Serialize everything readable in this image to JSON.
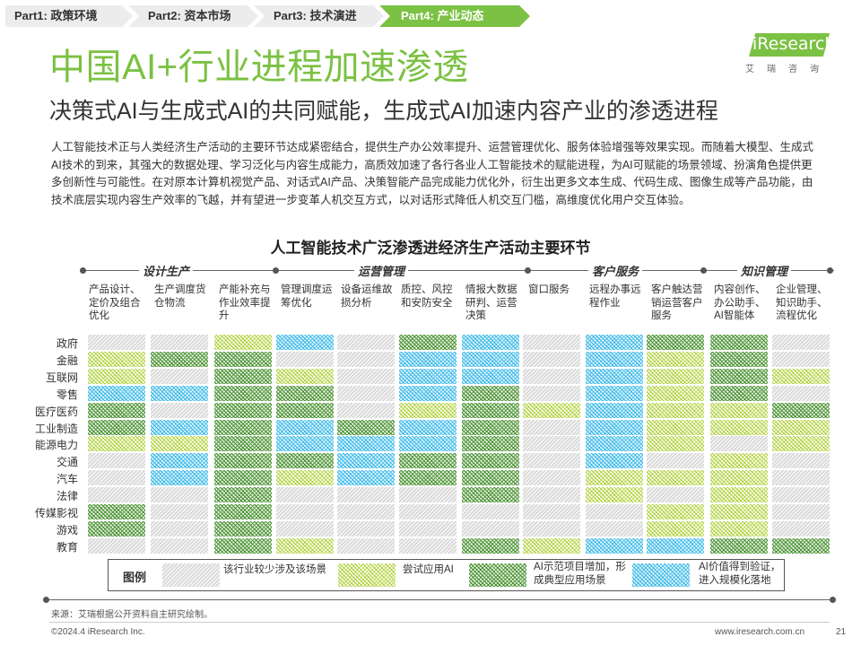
{
  "nav": {
    "tabs": [
      {
        "label": "Part1: 政策环境",
        "active": false
      },
      {
        "label": "Part2: 资本市场",
        "active": false
      },
      {
        "label": "Part3: 技术演进",
        "active": false
      },
      {
        "label": "Part4: 产业动态",
        "active": true
      }
    ]
  },
  "logo": {
    "brand": "iResearch",
    "cn": "艾瑞咨询"
  },
  "title": "中国AI+行业进程加速渗透",
  "subtitle": "决策式AI与生成式AI的共同赋能，生成式AI加速内容产业的渗透进程",
  "body_text": "人工智能技术正与人类经济生产活动的主要环节达成紧密结合，提供生产办公效率提升、运营管理优化、服务体验增强等效果实现。而随着大模型、生成式AI技术的到来，其强大的数据处理、学习泛化与内容生成能力，高质效加速了各行各业人工智能技术的赋能进程，为AI可赋能的场景领域、扮演角色提供更多创新性与可能性。在对原本计算机视觉产品、对话式AI产品、决策智能产品完成能力优化外，衍生出更多文本生成、代码生成、图像生成等产品功能，由技术底层实现内容生产效率的飞越，并有望进一步变革人机交互方式，以对话形式降低人机交互门槛，高维度优化用户交互体验。",
  "table": {
    "title": "人工智能技术广泛渗透进经济生产活动主要环节",
    "groups": [
      "设计生产",
      "运营管理",
      "客户服务",
      "知识管理"
    ],
    "columns": [
      "产品设计、定价及组合优化",
      "生产调度货仓物流",
      "产能补充与作业效率提升",
      "管理调度运筹优化",
      "设备运维故损分析",
      "质控、风控和安防安全",
      "情报大数据研判、运营决策",
      "窗口服务",
      "远程办事远程作业",
      "客户触达营销运营客户服务",
      "内容创作、办公助手、AI智能体",
      "企业管理、知识助手、流程优化"
    ],
    "rows": [
      "政府",
      "金融",
      "互联网",
      "零售",
      "医疗医药",
      "工业制造",
      "能源电力",
      "交通",
      "汽车",
      "法律",
      "传媒影视",
      "游戏",
      "教育"
    ],
    "matrix": [
      [
        0,
        0,
        1,
        3,
        0,
        2,
        3,
        0,
        3,
        2,
        2,
        0
      ],
      [
        1,
        2,
        2,
        0,
        0,
        3,
        3,
        0,
        3,
        1,
        2,
        0
      ],
      [
        1,
        0,
        2,
        1,
        0,
        3,
        3,
        0,
        3,
        1,
        2,
        1
      ],
      [
        3,
        3,
        2,
        2,
        0,
        3,
        2,
        0,
        3,
        1,
        2,
        0
      ],
      [
        2,
        0,
        2,
        2,
        0,
        1,
        2,
        1,
        3,
        1,
        1,
        2
      ],
      [
        2,
        3,
        2,
        3,
        2,
        3,
        2,
        0,
        3,
        1,
        1,
        1
      ],
      [
        1,
        1,
        2,
        3,
        3,
        3,
        2,
        0,
        3,
        1,
        0,
        1
      ],
      [
        0,
        3,
        2,
        2,
        3,
        2,
        2,
        0,
        3,
        0,
        1,
        0
      ],
      [
        0,
        3,
        2,
        1,
        3,
        2,
        2,
        0,
        1,
        1,
        1,
        0
      ],
      [
        0,
        0,
        2,
        0,
        0,
        0,
        2,
        0,
        1,
        0,
        1,
        0
      ],
      [
        2,
        0,
        2,
        0,
        0,
        0,
        0,
        0,
        0,
        1,
        1,
        0
      ],
      [
        2,
        0,
        2,
        0,
        0,
        0,
        0,
        0,
        0,
        1,
        1,
        0
      ],
      [
        0,
        0,
        2,
        1,
        0,
        0,
        2,
        1,
        3,
        3,
        2,
        2
      ]
    ],
    "legend": {
      "title": "图例",
      "items": [
        {
          "level": 0,
          "label": "该行业较少涉及该场景"
        },
        {
          "level": 1,
          "label": "尝试应用AI"
        },
        {
          "level": 2,
          "label": "AI示范项目增加，形成典型应用场景"
        },
        {
          "level": 3,
          "label": "AI价值得到验证，进入规模化落地"
        }
      ]
    }
  },
  "source": "来源：艾瑞根据公开资料自主研究绘制。",
  "footer": {
    "copyright": "©2024.4 iResearch Inc.",
    "website": "www.iresearch.com.cn",
    "page": "21"
  },
  "colors": {
    "accent": "#7bc143",
    "light_green": "#b5d444",
    "dark_green": "#4f9a38",
    "blue": "#3fbde8"
  }
}
